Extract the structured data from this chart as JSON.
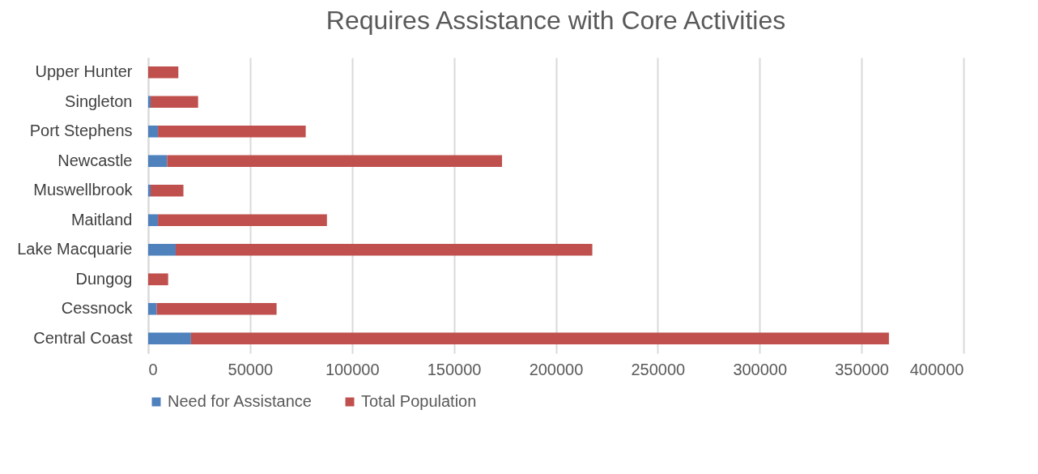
{
  "chart_data": {
    "type": "bar",
    "title": "Requires Assistance with Core Activities",
    "orientation": "horizontal",
    "stacked": true,
    "categories": [
      "Upper Hunter",
      "Singleton",
      "Port Stephens",
      "Newcastle",
      "Muswellbrook",
      "Maitland",
      "Lake Macquarie",
      "Dungog",
      "Cessnock",
      "Central Coast"
    ],
    "series": [
      {
        "name": "Need for Assistance",
        "color": "#4f81bd",
        "values": [
          0,
          1200,
          4800,
          9300,
          1200,
          4800,
          13500,
          0,
          4200,
          21000
        ]
      },
      {
        "name": "Total Population",
        "color": "#c0504d",
        "values": [
          14800,
          23300,
          72500,
          164300,
          16100,
          82900,
          204400,
          9800,
          58800,
          342400
        ]
      }
    ],
    "xlim": [
      0,
      400000
    ],
    "xticks": [
      0,
      50000,
      100000,
      150000,
      200000,
      250000,
      300000,
      350000,
      400000
    ],
    "grid": "x",
    "legend": "bottom"
  }
}
